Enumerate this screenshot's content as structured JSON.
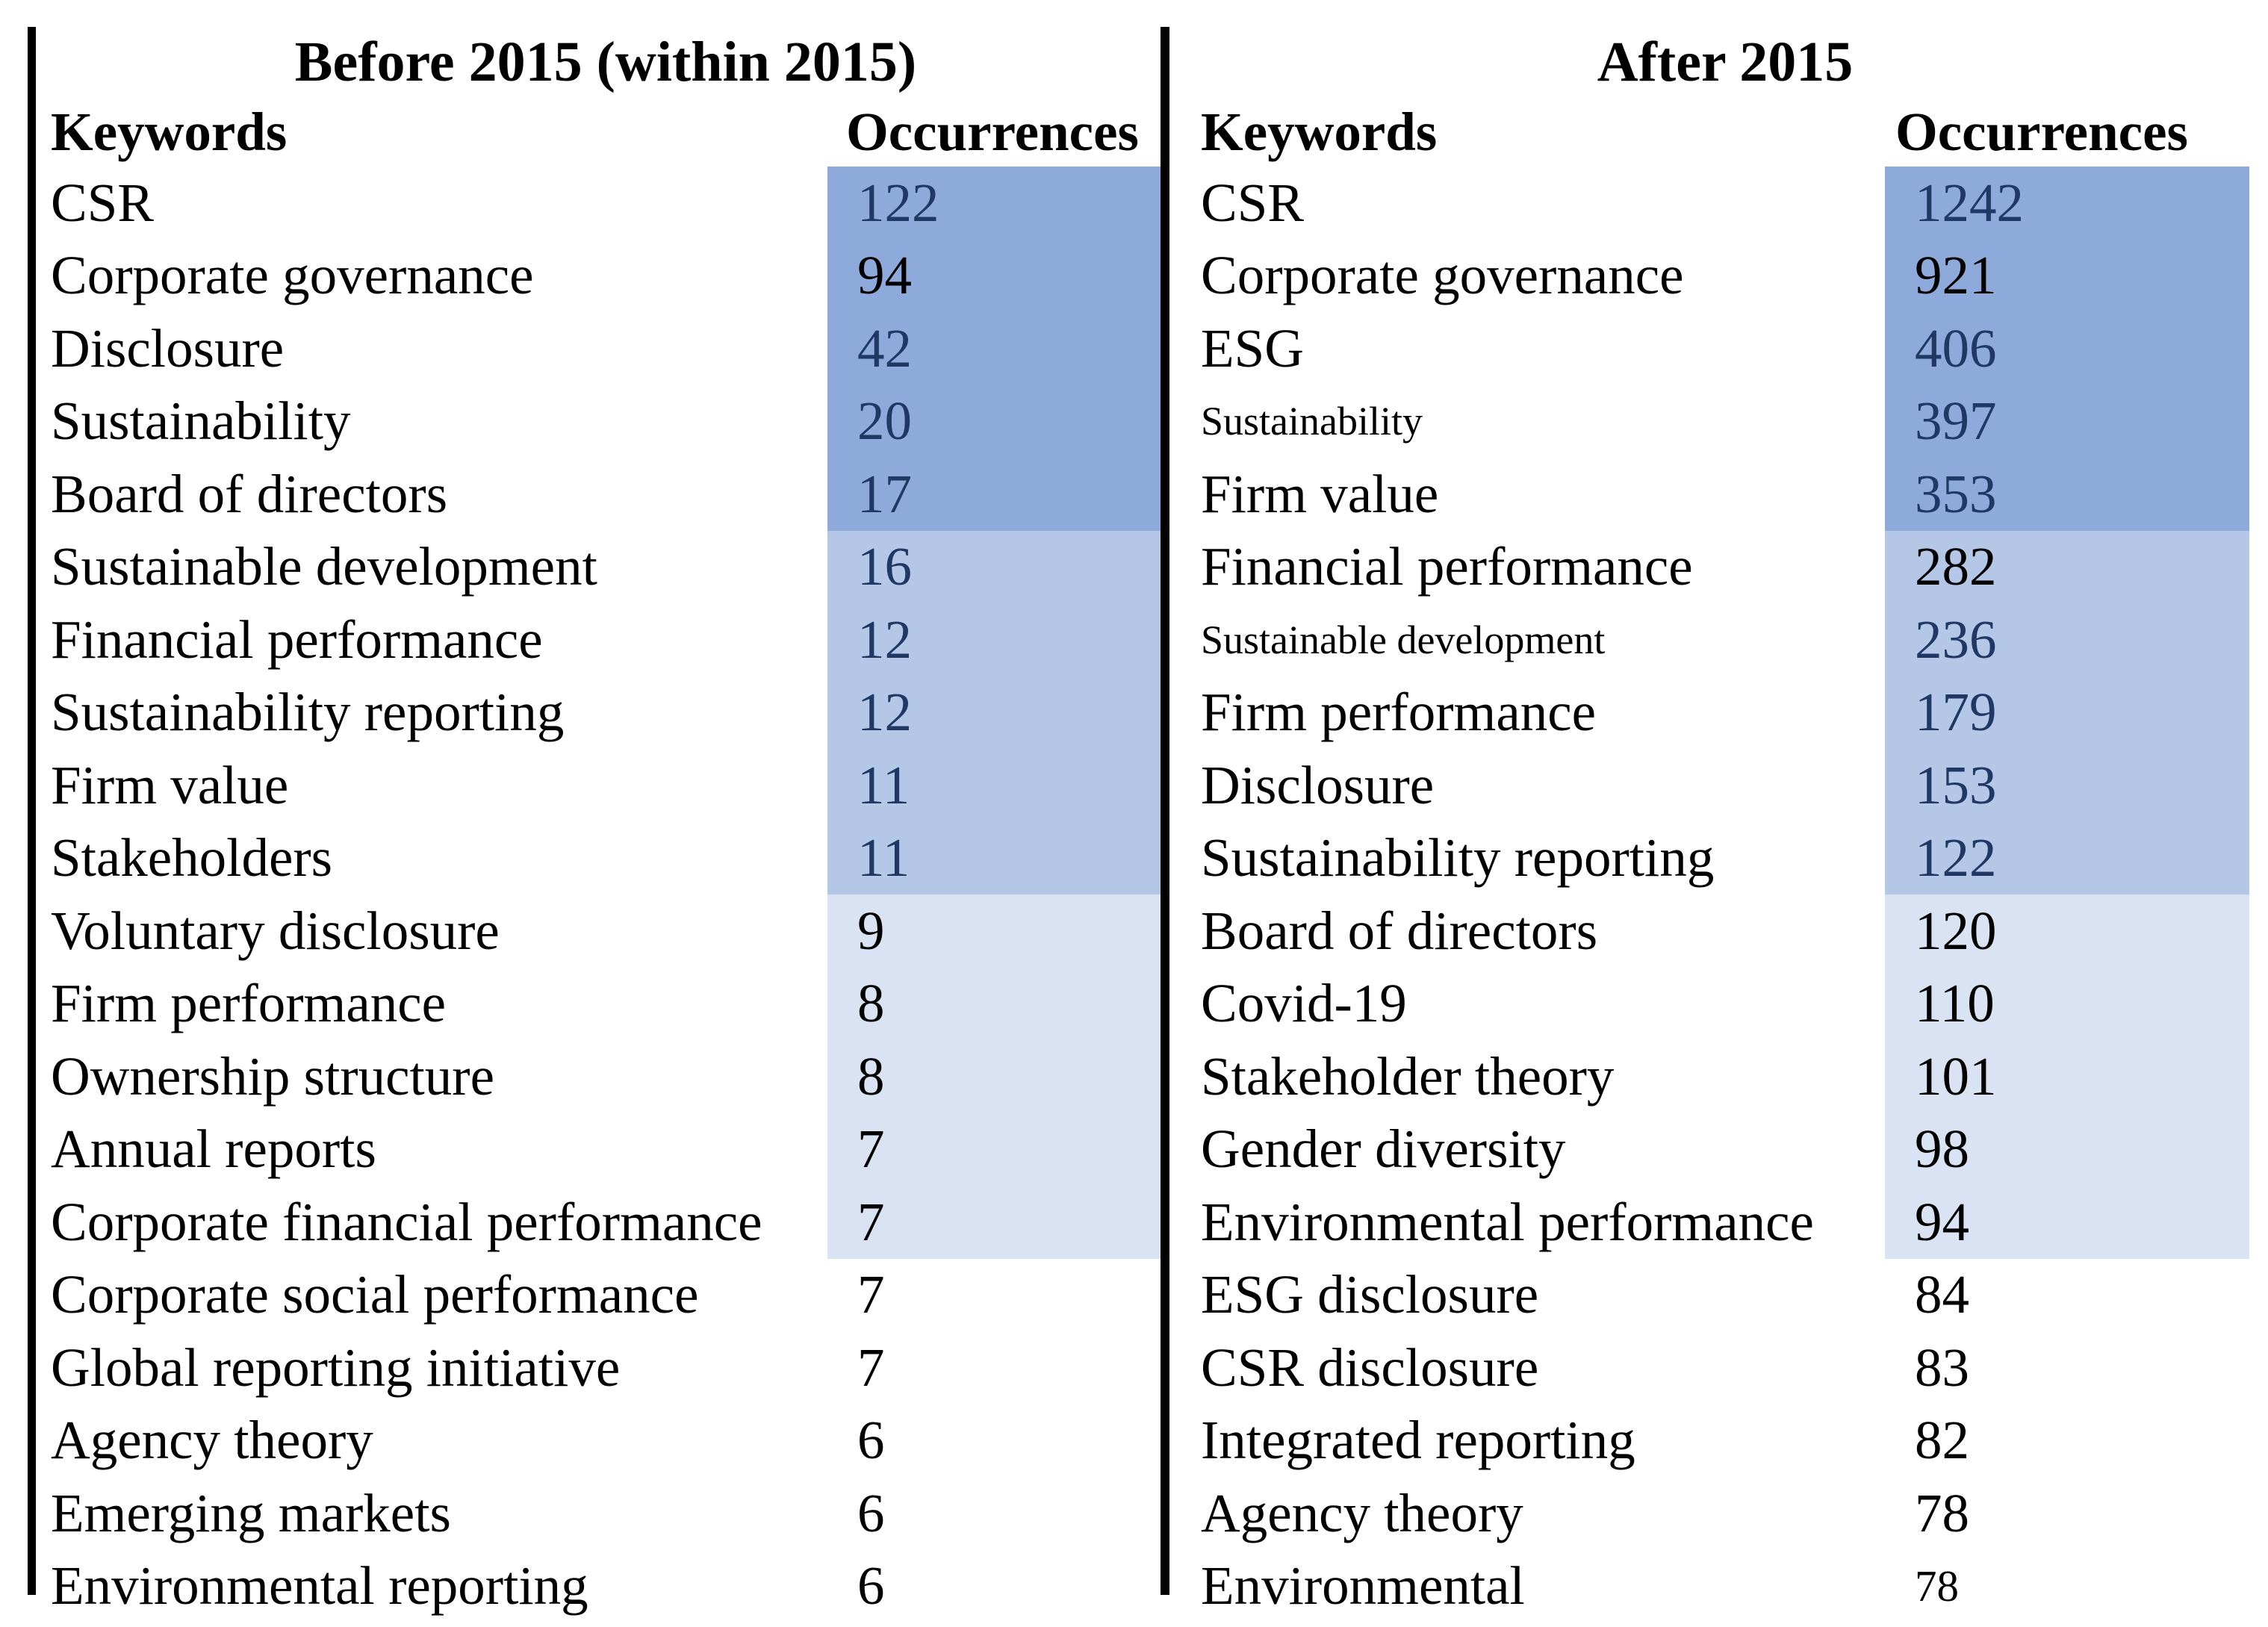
{
  "colors": {
    "band_dark": "#8EAADB",
    "band_medium": "#B4C7E7",
    "band_light": "#DAE3F3",
    "value_navy": "#1F3864",
    "text_black": "#000000",
    "border_black": "#000000"
  },
  "panels": [
    {
      "title": "Before 2015 (within 2015)",
      "keywords_header": "Keywords",
      "occurrences_header": "Occurrences",
      "rows": [
        {
          "keyword": "CSR",
          "value": "122",
          "band": "dark",
          "value_color": "navy"
        },
        {
          "keyword": "Corporate governance",
          "value": "94",
          "band": "dark",
          "value_color": "black"
        },
        {
          "keyword": "Disclosure",
          "value": "42",
          "band": "dark",
          "value_color": "navy"
        },
        {
          "keyword": "Sustainability",
          "value": "20",
          "band": "dark",
          "value_color": "navy"
        },
        {
          "keyword": "Board of directors",
          "value": "17",
          "band": "dark",
          "value_color": "navy"
        },
        {
          "keyword": "Sustainable development",
          "value": "16",
          "band": "medium",
          "value_color": "navy"
        },
        {
          "keyword": "Financial performance",
          "value": "12",
          "band": "medium",
          "value_color": "navy"
        },
        {
          "keyword": "Sustainability reporting",
          "value": "12",
          "band": "medium",
          "value_color": "navy"
        },
        {
          "keyword": "Firm value",
          "value": "11",
          "band": "medium",
          "value_color": "navy"
        },
        {
          "keyword": "Stakeholders",
          "value": "11",
          "band": "medium",
          "value_color": "navy"
        },
        {
          "keyword": "Voluntary disclosure",
          "value": "9",
          "band": "light",
          "value_color": "black"
        },
        {
          "keyword": "Firm performance",
          "value": "8",
          "band": "light",
          "value_color": "black"
        },
        {
          "keyword": "Ownership structure",
          "value": "8",
          "band": "light",
          "value_color": "black"
        },
        {
          "keyword": "Annual reports",
          "value": "7",
          "band": "light",
          "value_color": "black"
        },
        {
          "keyword": "Corporate financial performance",
          "value": "7",
          "band": "light",
          "value_color": "black"
        },
        {
          "keyword": "Corporate social performance",
          "value": "7",
          "band": "none",
          "value_color": "black"
        },
        {
          "keyword": "Global reporting initiative",
          "value": "7",
          "band": "none",
          "value_color": "black"
        },
        {
          "keyword": "Agency theory",
          "value": "6",
          "band": "none",
          "value_color": "black"
        },
        {
          "keyword": "Emerging markets",
          "value": "6",
          "band": "none",
          "value_color": "black"
        },
        {
          "keyword": "Environmental reporting",
          "value": "6",
          "band": "none",
          "value_color": "black"
        }
      ]
    },
    {
      "title": "After 2015",
      "keywords_header": "Keywords",
      "occurrences_header": "Occurrences",
      "rows": [
        {
          "keyword": "CSR",
          "value": "1242",
          "band": "dark",
          "value_color": "navy"
        },
        {
          "keyword": "Corporate governance",
          "value": "921",
          "band": "dark",
          "value_color": "black"
        },
        {
          "keyword": "ESG",
          "value": "406",
          "band": "dark",
          "value_color": "navy"
        },
        {
          "keyword": "Sustainability",
          "value": "397",
          "band": "dark",
          "value_color": "navy",
          "keyword_small": true
        },
        {
          "keyword": "Firm value",
          "value": "353",
          "band": "dark",
          "value_color": "navy"
        },
        {
          "keyword": "Financial performance",
          "value": "282",
          "band": "medium",
          "value_color": "black"
        },
        {
          "keyword": "Sustainable development",
          "value": "236",
          "band": "medium",
          "value_color": "navy",
          "keyword_small": true
        },
        {
          "keyword": "Firm performance",
          "value": "179",
          "band": "medium",
          "value_color": "navy"
        },
        {
          "keyword": "Disclosure",
          "value": "153",
          "band": "medium",
          "value_color": "navy"
        },
        {
          "keyword": "Sustainability reporting",
          "value": "122",
          "band": "medium",
          "value_color": "navy"
        },
        {
          "keyword": "Board of directors",
          "value": "120",
          "band": "light",
          "value_color": "black"
        },
        {
          "keyword": "Covid-19",
          "value": "110",
          "band": "light",
          "value_color": "black"
        },
        {
          "keyword": "Stakeholder theory",
          "value": "101",
          "band": "light",
          "value_color": "black"
        },
        {
          "keyword": "Gender diversity",
          "value": "98",
          "band": "light",
          "value_color": "black"
        },
        {
          "keyword": "Environmental performance",
          "value": "94",
          "band": "light",
          "value_color": "black"
        },
        {
          "keyword": "ESG disclosure",
          "value": "84",
          "band": "none",
          "value_color": "black"
        },
        {
          "keyword": "CSR disclosure",
          "value": "83",
          "band": "none",
          "value_color": "black"
        },
        {
          "keyword": "Integrated reporting",
          "value": "82",
          "band": "none",
          "value_color": "black"
        },
        {
          "keyword": "Agency theory",
          "value": "78",
          "band": "none",
          "value_color": "black"
        },
        {
          "keyword": "Environmental",
          "value": "78",
          "band": "none",
          "value_color": "black",
          "value_small": true
        }
      ]
    }
  ]
}
